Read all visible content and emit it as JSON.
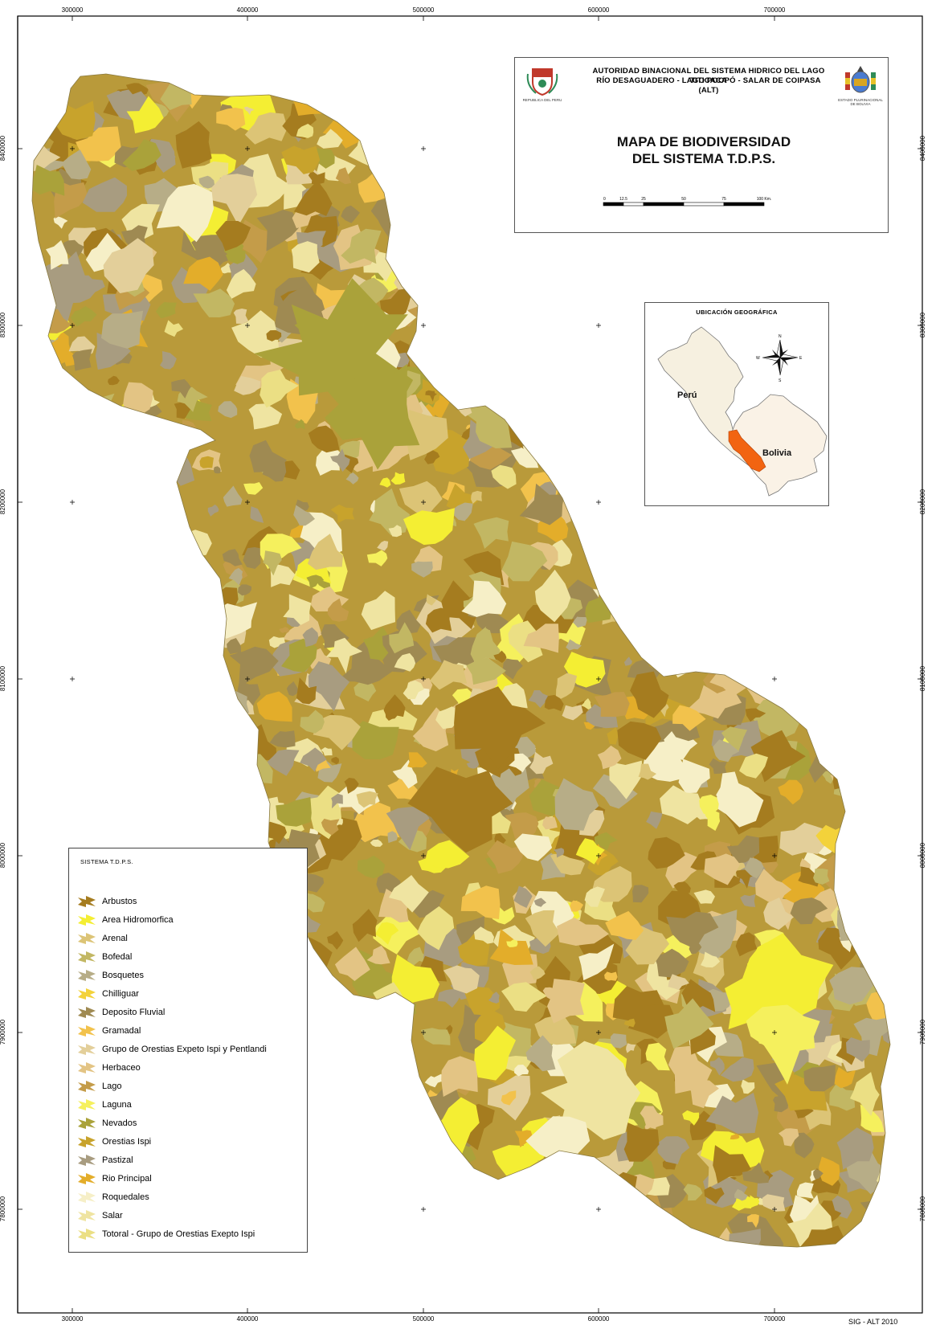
{
  "grid": {
    "x_labels": [
      "300000",
      "400000",
      "500000",
      "600000",
      "700000"
    ],
    "y_labels": [
      "8400000",
      "8300000",
      "8200000",
      "8100000",
      "8000000",
      "7900000",
      "7800000"
    ]
  },
  "title_block": {
    "authority_lines": [
      "AUTORIDAD BINACIONAL DEL SISTEMA HIDRICO DEL LAGO TITICACA",
      "RÍO DESAGUADERO - LAGO POOPÓ - SALAR DE COIPASA",
      "(ALT)"
    ],
    "left_emblem_caption": "REPUBLICA DEL PERU",
    "right_emblem_caption": "ESTADO PLURINACIONAL DE BOLIVIA",
    "map_title_line1": "MAPA DE BIODIVERSIDAD",
    "map_title_line2": "DEL SISTEMA T.D.P.S.",
    "scale_labels": [
      "0",
      "12.5",
      "25",
      "50",
      "75",
      "100 Km."
    ]
  },
  "location_inset": {
    "title": "UBICACIÓN GEOGRÁFICA",
    "country_peru": "Perú",
    "country_bolivia": "Bolivia",
    "compass_labels": [
      "N",
      "S",
      "E",
      "W"
    ],
    "colors": {
      "peru": "#f6f0e0",
      "bolivia": "#faf2e6",
      "tdps": "#f26411"
    }
  },
  "legend": {
    "title": "SISTEMA T.D.P.S.",
    "items": [
      {
        "label": "Arbustos",
        "color": "#a57c1f"
      },
      {
        "label": "Area Hidromorfica",
        "color": "#f4ee33"
      },
      {
        "label": "Arenal",
        "color": "#dcc476"
      },
      {
        "label": "Bofedal",
        "color": "#c2b763"
      },
      {
        "label": "Bosquetes",
        "color": "#b7ad87"
      },
      {
        "label": "Chilliguar",
        "color": "#f3d23a"
      },
      {
        "label": "Deposito Fluvial",
        "color": "#9f8a52"
      },
      {
        "label": "Gramadal",
        "color": "#f2c24c"
      },
      {
        "label": "Grupo de Orestias Expeto Ispi y Pentlandi",
        "color": "#e3cf9a"
      },
      {
        "label": "Herbaceo",
        "color": "#e3c484"
      },
      {
        "label": "Lago",
        "color": "#c49c49"
      },
      {
        "label": "Laguna",
        "color": "#f5f05d"
      },
      {
        "label": "Nevados",
        "color": "#aaa23a"
      },
      {
        "label": "Orestias Ispi",
        "color": "#c8a32c"
      },
      {
        "label": "Pastizal",
        "color": "#a89c80"
      },
      {
        "label": "Rio Principal",
        "color": "#e3ad2a"
      },
      {
        "label": "Roquedales",
        "color": "#f6efc7"
      },
      {
        "label": "Salar",
        "color": "#efe4a1"
      },
      {
        "label": "Totoral - Grupo de Orestias Exepto Ispi",
        "color": "#ebdf84"
      }
    ]
  },
  "credit": "SIG - ALT 2010"
}
